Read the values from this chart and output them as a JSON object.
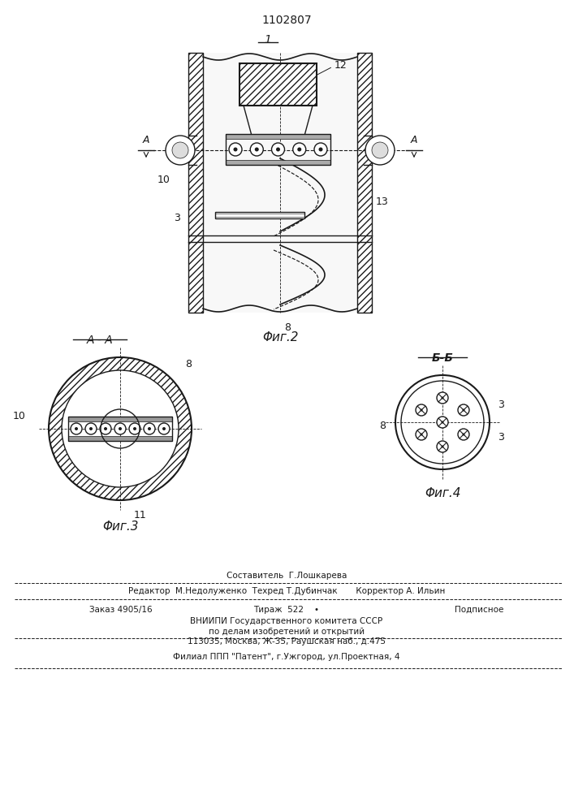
{
  "patent_number": "1102807",
  "bg_color": "#ffffff",
  "line_color": "#1a1a1a",
  "fig2_label": "Φиг.2",
  "fig3_label": "Φиг.3",
  "fig4_label": "Φиг.4",
  "section_aa": "A - A",
  "section_bb": "Б-Б",
  "label_1": "1",
  "label_3": "3",
  "label_8": "8",
  "label_10": "10",
  "label_11": "11",
  "label_12": "12",
  "label_13": "13",
  "footer_line1": "Составитель  Г.Лошкарева",
  "footer_line2": "Редактор  М.Недолуженко  Техред Т.Дубинчак       Корректор А. Ильин",
  "footer_line3": "Заказ 4905/16         Тираж  522   •          Подписное",
  "footer_line4": "ВНИИПИ Государственного комитета СССР",
  "footer_line5": "по делам изобретений и открытий",
  "footer_line6": "113035, Москва, Ж-35, Раушская наб., д.475",
  "footer_line7": "Филиал ППП \"Патент\", г.Ужгород, ул.Проектная, 4"
}
